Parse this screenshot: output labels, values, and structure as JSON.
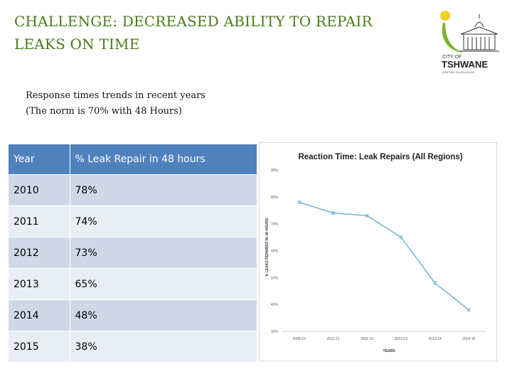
{
  "slide": {
    "title_line1": "CHALLENGE: DECREASED ABILITY TO REPAIR",
    "title_line2": "LEAKS ON TIME",
    "subtitle_line1": "Response times trends in recent years",
    "subtitle_line2": "(The norm is 70% with 48 Hours)"
  },
  "logo": {
    "line1": "CITY OF",
    "line2": "TSHWANE",
    "tagline": "IGNITING EXCELLENCE",
    "sun_color": "#f2d01e",
    "swoosh_color": "#7cb32b"
  },
  "table": {
    "headers": [
      "Year",
      "% Leak Repair in 48 hours"
    ],
    "rows": [
      [
        "2010",
        "78%"
      ],
      [
        "2011",
        "74%"
      ],
      [
        "2012",
        "73%"
      ],
      [
        "2013",
        "65%"
      ],
      [
        "2014",
        "48%"
      ],
      [
        "2015",
        "38%"
      ]
    ]
  },
  "chart_data": {
    "type": "line",
    "title": "Reaction Time: Leak Repairs (All Regions)",
    "xlabel": "YEARS",
    "ylabel": "% LEAKS REPAIRED IN 48 HOURS",
    "categories": [
      "2009-10",
      "2010-11",
      "2011-12",
      "2012-13",
      "2013-14",
      "2014-15"
    ],
    "series": [
      {
        "values": [
          78,
          74,
          73,
          65,
          48,
          38
        ],
        "color": "#7ab7d8"
      }
    ],
    "ylim": [
      30,
      90
    ],
    "yticks": [
      30,
      40,
      50,
      60,
      70,
      80,
      90
    ],
    "ytick_labels": [
      "30%",
      "40%",
      "50%",
      "60%",
      "70%",
      "80%",
      "90%"
    ],
    "grid": false,
    "legend": "none"
  }
}
